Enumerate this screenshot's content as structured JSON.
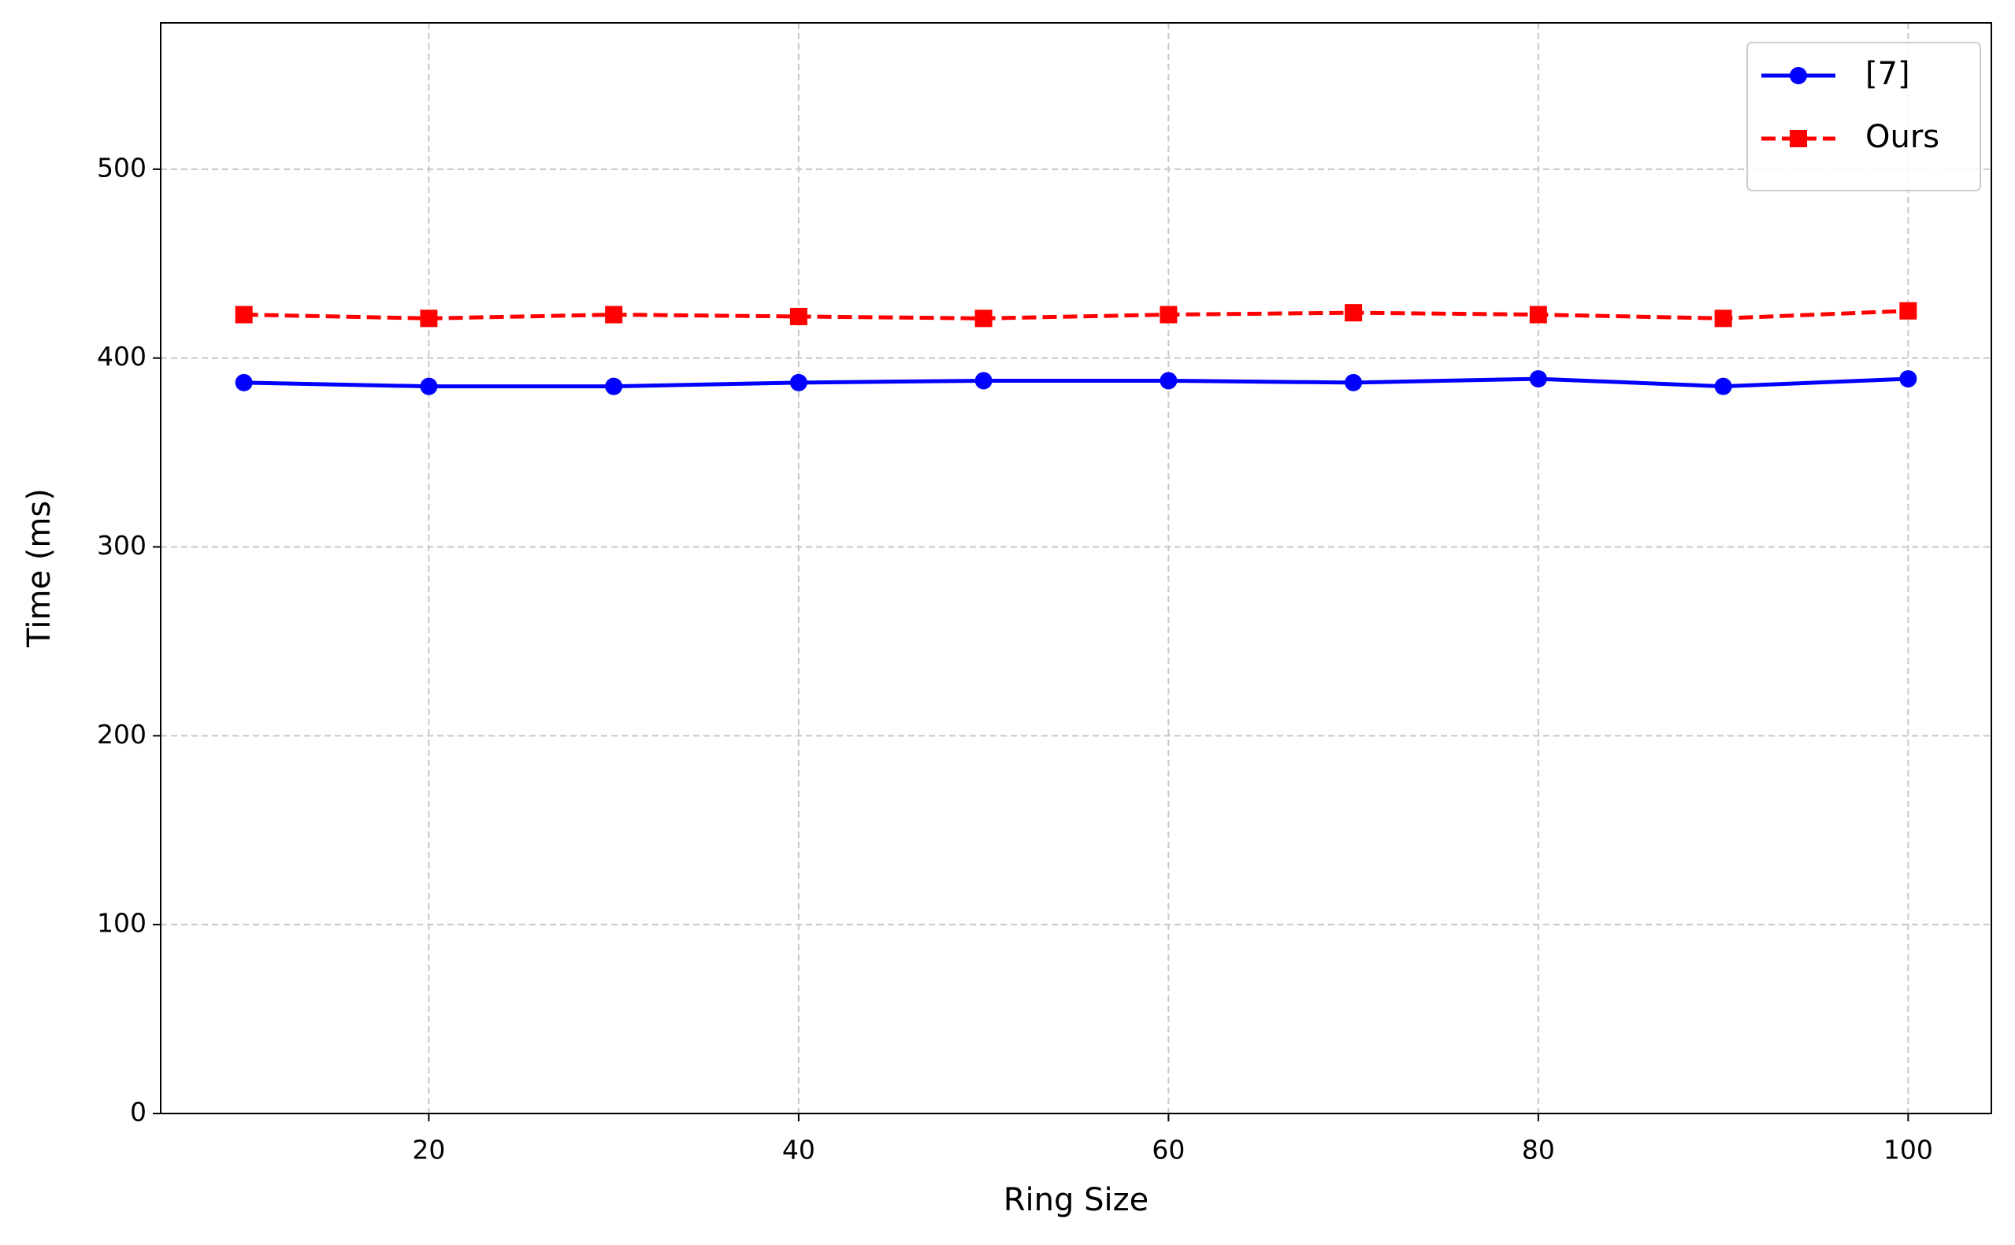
{
  "chart_data": {
    "type": "line",
    "x_label": "Ring Size",
    "y_label": "Time (ms)",
    "x": [
      10,
      20,
      30,
      40,
      50,
      60,
      70,
      80,
      90,
      100
    ],
    "series": [
      {
        "name": "[7]",
        "color": "#0000ff",
        "marker": "circle",
        "linestyle": "solid",
        "values": [
          387,
          385,
          385,
          387,
          388,
          388,
          387,
          389,
          385,
          389
        ]
      },
      {
        "name": "Ours",
        "color": "#ff0000",
        "marker": "square",
        "linestyle": "dashed",
        "values": [
          423,
          421,
          423,
          422,
          421,
          423,
          424,
          423,
          421,
          425
        ]
      }
    ],
    "xlim": [
      5.5,
      104.5
    ],
    "ylim": [
      0,
      577.5
    ],
    "xticks": [
      20,
      40,
      60,
      80,
      100
    ],
    "yticks": [
      0,
      100,
      200,
      300,
      400,
      500
    ],
    "grid": true,
    "legend": "upper right"
  }
}
